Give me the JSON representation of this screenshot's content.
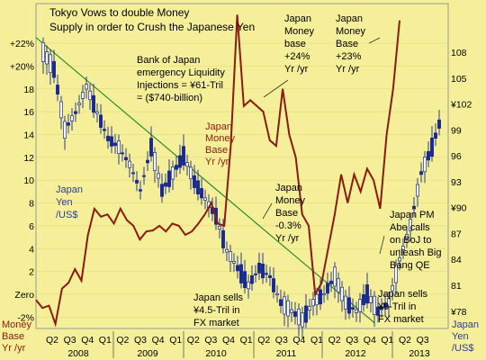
{
  "chart_data": {
    "type": "line",
    "title": "Tokyo Vows to double Money Supply in order to Crush the Japanese Yen",
    "quarters": [
      "Q1",
      "Q2",
      "Q3",
      "Q4",
      "Q1",
      "Q2",
      "Q3",
      "Q4",
      "Q1",
      "Q2",
      "Q3",
      "Q4",
      "Q1",
      "Q2",
      "Q3",
      "Q4",
      "Q1",
      "Q2",
      "Q3",
      "Q4",
      "Q1",
      "Q2",
      "Q3"
    ],
    "x_tick_labels": [
      "Q2",
      "Q3",
      "Q4",
      "Q1",
      "Q2",
      "Q3",
      "Q4",
      "Q1",
      "Q2",
      "Q3",
      "Q4",
      "Q1",
      "Q2",
      "Q3",
      "Q4",
      "Q1",
      "Q2",
      "Q3",
      "Q4",
      "Q1",
      "Q2",
      "Q3"
    ],
    "years": [
      "2008",
      "2009",
      "2010",
      "2011",
      "2012",
      "2013"
    ],
    "left_axis": {
      "label_line1": "Money",
      "label_line2": "Base",
      "label_line3": "Yr /yr",
      "ticks": [
        "+22%",
        "+20%",
        "18",
        "16",
        "14",
        "12",
        "10",
        "8",
        "6",
        "4",
        "2",
        "Zero",
        "-2%"
      ],
      "tick_values": [
        22,
        20,
        18,
        16,
        14,
        12,
        10,
        8,
        6,
        4,
        2,
        0,
        -2
      ],
      "ylim": [
        -3,
        25
      ]
    },
    "right_axis": {
      "label_line1": "Japan",
      "label_line2": "Yen",
      "label_line3": "/US$",
      "ticks": [
        "108",
        "105",
        "¥102",
        "99",
        "96",
        "93",
        "¥90",
        "87",
        "84",
        "81",
        "¥78"
      ],
      "tick_values": [
        108,
        105,
        102,
        99,
        96,
        93,
        90,
        87,
        84,
        81,
        78
      ],
      "ylim": [
        76,
        113
      ]
    },
    "series": [
      {
        "name": "Japan Money Base Yr /yr",
        "axis": "left",
        "color": "#8b1a10",
        "values": [
          [
            0,
            -0.5
          ],
          [
            0.5,
            -1.2
          ],
          [
            1,
            -1.0
          ],
          [
            1.5,
            -2.6
          ],
          [
            2,
            0.5
          ],
          [
            2.5,
            1.0
          ],
          [
            3,
            2.2
          ],
          [
            3.5,
            1.2
          ],
          [
            4,
            5.2
          ],
          [
            4.5,
            7.5
          ],
          [
            5,
            6.8
          ],
          [
            5.5,
            7.0
          ],
          [
            6,
            6.2
          ],
          [
            6.5,
            7.5
          ],
          [
            7,
            6.5
          ],
          [
            7.5,
            6.0
          ],
          [
            8,
            4.8
          ],
          [
            8.5,
            5.5
          ],
          [
            9,
            5.6
          ],
          [
            9.5,
            6.0
          ],
          [
            10,
            5.5
          ],
          [
            10.5,
            6.2
          ],
          [
            11,
            6.0
          ],
          [
            11.5,
            5.2
          ],
          [
            12,
            5.5
          ],
          [
            12.5,
            6.2
          ],
          [
            13,
            7.0
          ],
          [
            13.5,
            8.0
          ],
          [
            14,
            6.2
          ],
          [
            14.5,
            6.0
          ],
          [
            15,
            13.0
          ],
          [
            15.5,
            24.5
          ],
          [
            16,
            16.5
          ],
          [
            16.5,
            17.0
          ],
          [
            17,
            16.5
          ],
          [
            17.5,
            16.0
          ],
          [
            18,
            13.5
          ],
          [
            18.5,
            13.0
          ],
          [
            19,
            18.0
          ],
          [
            19.5,
            14.0
          ],
          [
            20,
            12.0
          ],
          [
            20.5,
            7.0
          ],
          [
            21,
            6.0
          ],
          [
            21.5,
            0.0
          ],
          [
            22,
            1.0
          ],
          [
            22.5,
            4.0
          ],
          [
            23,
            7.0
          ],
          [
            23.5,
            10.5
          ],
          [
            24,
            8.0
          ],
          [
            24.5,
            10.5
          ],
          [
            25,
            9.0
          ],
          [
            25.5,
            11.0
          ],
          [
            26,
            10.0
          ],
          [
            26.5,
            7.5
          ],
          [
            27,
            14.0
          ],
          [
            27.5,
            18.0
          ],
          [
            28,
            24.0
          ]
        ]
      },
      {
        "name": "Japan Yen /US$",
        "axis": "right",
        "color": "#1a2a8c",
        "values": [
          [
            0,
            108
          ],
          [
            1,
            106
          ],
          [
            2,
            99
          ],
          [
            3,
            101
          ],
          [
            4,
            104
          ],
          [
            5,
            101
          ],
          [
            6,
            98
          ],
          [
            7,
            97
          ],
          [
            8,
            95
          ],
          [
            9,
            92
          ],
          [
            10,
            97
          ],
          [
            11,
            92
          ],
          [
            12,
            94
          ],
          [
            13,
            96
          ],
          [
            14,
            93
          ],
          [
            15,
            91
          ],
          [
            16,
            89
          ],
          [
            17,
            85
          ],
          [
            18,
            83
          ],
          [
            19,
            81
          ],
          [
            20,
            83
          ],
          [
            21,
            82
          ],
          [
            22,
            79
          ],
          [
            23,
            78
          ],
          [
            24,
            77
          ],
          [
            25,
            79
          ],
          [
            26,
            80
          ],
          [
            27,
            82
          ],
          [
            28,
            79
          ],
          [
            29,
            78
          ],
          [
            30,
            80
          ],
          [
            31,
            78
          ],
          [
            32,
            79
          ],
          [
            33,
            84
          ],
          [
            34,
            88
          ],
          [
            35,
            94
          ],
          [
            36,
            97
          ],
          [
            37,
            101
          ]
        ]
      }
    ],
    "trend_line": {
      "color": "#2e8b2e",
      "from": [
        0,
        22.5
      ],
      "to": [
        29,
        -2.5
      ],
      "axis": "left"
    },
    "annotations": [
      {
        "id": "boj",
        "lines": [
          "Bank of Japan",
          "emergency Liquidity",
          "Injections = ¥61-Tril",
          "= ($740-billion)"
        ]
      },
      {
        "id": "mb24",
        "lines": [
          "Japan",
          "Money",
          "base",
          "+24%",
          "Yr /yr"
        ]
      },
      {
        "id": "mb23",
        "lines": [
          "Japan",
          "Money",
          "Base",
          "+23%",
          "Yr /yr"
        ]
      },
      {
        "id": "mbred",
        "lines": [
          "Japan",
          "Money",
          "Base",
          "Yr /yr"
        ]
      },
      {
        "id": "yenblue",
        "lines": [
          "Japan",
          "Yen",
          "/US$"
        ]
      },
      {
        "id": "mbneg",
        "lines": [
          "Japan",
          "Money",
          "Base",
          "-0.3%",
          "Yr /yr"
        ]
      },
      {
        "id": "abe",
        "lines": [
          "Japan PM",
          "Abe calls",
          "on BoJ to",
          "unleash Big",
          "Bang QE"
        ]
      },
      {
        "id": "sells45",
        "lines": [
          "Japan sells",
          "¥4.5-Tril in",
          "FX market"
        ]
      },
      {
        "id": "sells9",
        "lines": [
          "Japan sells",
          "¥9-Tril in",
          "FX market"
        ]
      }
    ]
  }
}
